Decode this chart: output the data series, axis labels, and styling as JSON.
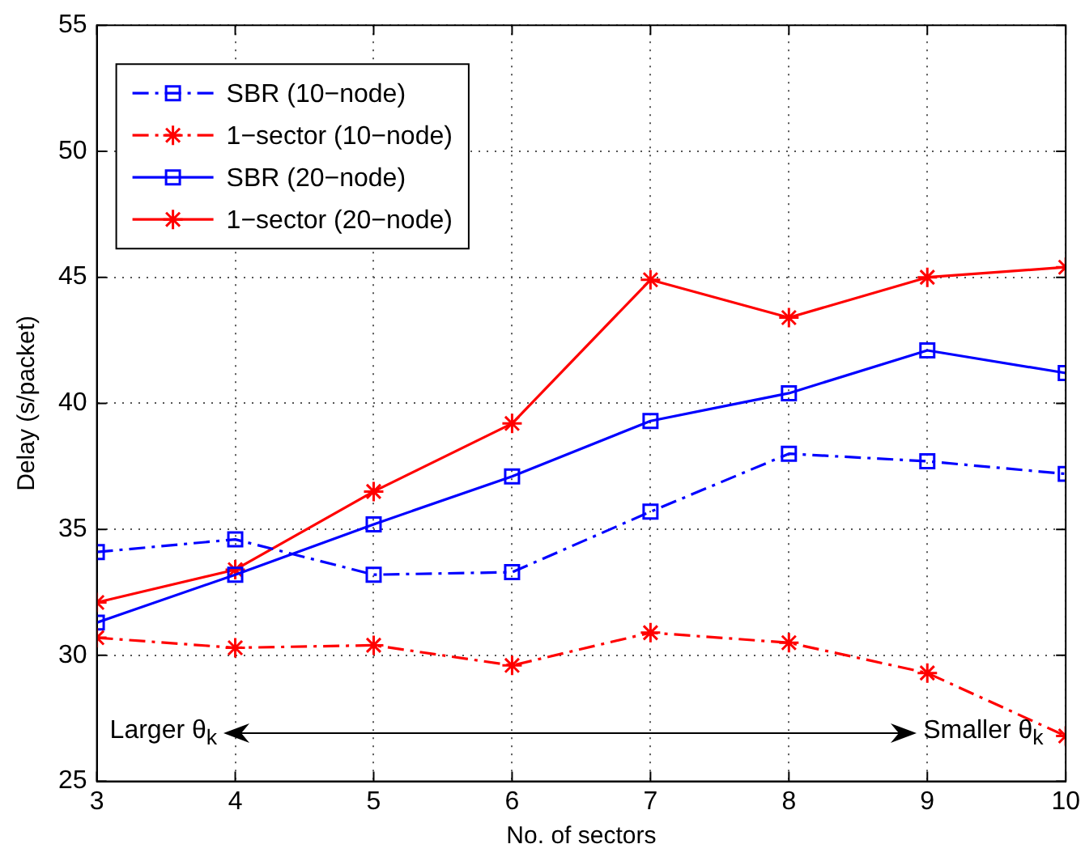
{
  "chart_data": {
    "type": "line",
    "xlabel": "No. of sectors",
    "ylabel": "Delay (s/packet)",
    "x": [
      3,
      4,
      5,
      6,
      7,
      8,
      9,
      10
    ],
    "xlim": [
      3,
      10
    ],
    "xticks": [
      3,
      4,
      5,
      6,
      7,
      8,
      9,
      10
    ],
    "ylim": [
      25,
      55
    ],
    "yticks": [
      25,
      30,
      35,
      40,
      45,
      50,
      55
    ],
    "grid": true,
    "legend": "top left",
    "series": [
      {
        "name": "SBR (10−node)",
        "color": "#0000ff",
        "marker": "square",
        "line_style": "dashed",
        "values": [
          34.1,
          34.6,
          33.2,
          33.3,
          35.7,
          38.0,
          37.7,
          37.2
        ]
      },
      {
        "name": "1−sector (10−node)",
        "color": "#ff0000",
        "marker": "cross",
        "line_style": "dashed",
        "values": [
          30.7,
          30.3,
          30.4,
          29.6,
          30.9,
          30.5,
          29.3,
          26.8
        ]
      },
      {
        "name": "SBR (20−node)",
        "color": "#0000ff",
        "marker": "square",
        "line_style": "solid",
        "values": [
          31.3,
          33.2,
          35.2,
          37.1,
          39.3,
          40.4,
          42.1,
          41.2
        ]
      },
      {
        "name": "1−sector (20−node)",
        "color": "#ff0000",
        "marker": "cross",
        "line_style": "solid",
        "values": [
          32.1,
          33.4,
          36.5,
          39.2,
          44.9,
          43.4,
          45.0,
          45.4
        ]
      }
    ],
    "annotations": [
      "Larger θ$_{k}$",
      "Smaller θ$_{k}$"
    ]
  }
}
